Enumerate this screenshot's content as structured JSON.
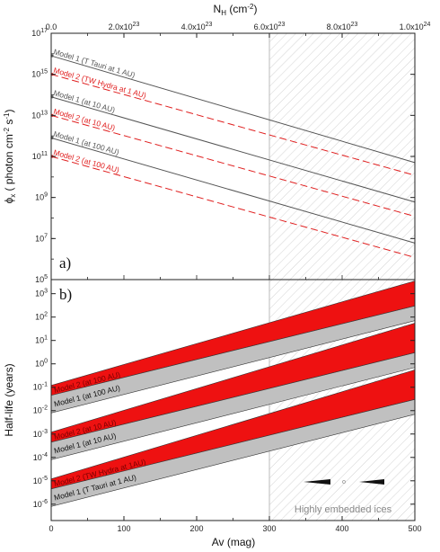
{
  "chart_data": [
    {
      "type": "line",
      "panel_label": "a)",
      "ylabel": "ϕx ( photon cm-2 s-1)",
      "xlabel_top": "NH (cm-2)",
      "y_scale": "log",
      "ylim": [
        100000,
        100000000000000000
      ],
      "xlim": [
        0,
        500
      ],
      "x_top_lim": [
        0,
        1e+24
      ],
      "top_ticks": [
        "0.0",
        "2.0x1023",
        "4.0x1023",
        "6.0x1023",
        "8.0x1023",
        "1.0x1024"
      ],
      "y_ticks": [
        "105",
        "107",
        "109",
        "1011",
        "1013",
        "1015",
        "1017"
      ],
      "shaded_region": {
        "x_from": 300,
        "x_to": 500
      },
      "series": [
        {
          "name": "Model 1 (T Tauri at 1 AU)",
          "color": "#555555",
          "style": "solid",
          "x": [
            0,
            500
          ],
          "y": [
            8000000000000000.0,
            50000000000.0
          ]
        },
        {
          "name": "Model 2 (TW Hydra at 1 AU)",
          "color": "#e02020",
          "style": "dashed",
          "x": [
            0,
            500
          ],
          "y": [
            1000000000000000.0,
            12000000000.0
          ]
        },
        {
          "name": "Model 1 (at 10 AU)",
          "color": "#555555",
          "style": "solid",
          "x": [
            0,
            500
          ],
          "y": [
            80000000000000.0,
            600000000.0
          ]
        },
        {
          "name": "Model 2 (at 10 AU)",
          "color": "#e02020",
          "style": "dashed",
          "x": [
            0,
            500
          ],
          "y": [
            10000000000000.0,
            120000000.0
          ]
        },
        {
          "name": "Model 1 (at 100 AU)",
          "color": "#555555",
          "style": "solid",
          "x": [
            0,
            500
          ],
          "y": [
            800000000000.0,
            6000000.0
          ]
        },
        {
          "name": "Model 2 (at 100 AU)",
          "color": "#e02020",
          "style": "dashed",
          "x": [
            0,
            500
          ],
          "y": [
            100000000000.0,
            1200000.0
          ]
        }
      ]
    },
    {
      "type": "area",
      "panel_label": "b)",
      "ylabel": "Half-life (years)",
      "xlabel": "Av (mag)",
      "y_scale": "log",
      "ylim": [
        2e-07,
        4000
      ],
      "xlim": [
        0,
        500
      ],
      "x_ticks": [
        "0",
        "100",
        "200",
        "300",
        "400",
        "500"
      ],
      "y_ticks": [
        "10-6",
        "10-5",
        "10-4",
        "10-3",
        "10-2",
        "10-1",
        "100",
        "101",
        "102",
        "103"
      ],
      "shaded_region": {
        "x_from": 300,
        "x_to": 500,
        "label": "Highly embedded ices"
      },
      "bands": [
        {
          "name": "Model 2 (at 100 AU)",
          "color": "#ee1111",
          "x": [
            0,
            500
          ],
          "lower": [
            0.045,
            300
          ],
          "upper": [
            0.12,
            3500
          ]
        },
        {
          "name": "Model 1 (at 100 AU)",
          "color": "#c0c0c0",
          "x": [
            0,
            500
          ],
          "lower": [
            0.008,
            70
          ],
          "upper": [
            0.045,
            300
          ]
        },
        {
          "name": "Model 2 (at 10 AU)",
          "color": "#ee1111",
          "x": [
            0,
            500
          ],
          "lower": [
            0.00045,
            3
          ],
          "upper": [
            0.0012,
            55
          ]
        },
        {
          "name": "Model 1 (at 10 AU)",
          "color": "#c0c0c0",
          "x": [
            0,
            500
          ],
          "lower": [
            8e-05,
            0.7
          ],
          "upper": [
            0.00045,
            3
          ]
        },
        {
          "name": "Model 2 (TW Hydra at 1AU)",
          "color": "#ee1111",
          "x": [
            0,
            500
          ],
          "lower": [
            4.5e-06,
            0.03
          ],
          "upper": [
            1.2e-05,
            0.55
          ]
        },
        {
          "name": "Model 1 (T Tauri at 1 AU)",
          "color": "#c0c0c0",
          "x": [
            0,
            500
          ],
          "lower": [
            8e-07,
            0.007
          ],
          "upper": [
            4.5e-06,
            0.03
          ]
        }
      ]
    }
  ]
}
